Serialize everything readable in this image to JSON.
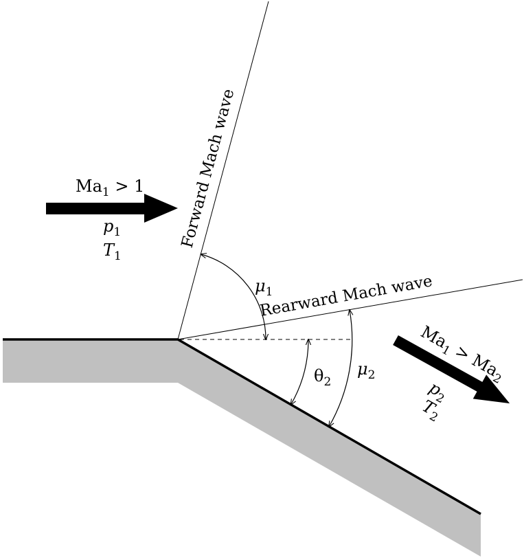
{
  "labels": {
    "forward_wave": "Forward Mach wave",
    "rearward_wave": "Rearward Mach wave",
    "upstream": {
      "mach_main": "Ma",
      "mach_sub": "1",
      "mach_rest": " > 1",
      "p_main": "p",
      "p_sub": "1",
      "t_main": "T",
      "t_sub": "1"
    },
    "downstream": {
      "mach_main": "Ma",
      "mach_sub": "1",
      "mach_mid": " > Ma",
      "mach_sub2": "2",
      "p_main": "p",
      "p_sub": "2",
      "t_main": "T",
      "t_sub": "2"
    },
    "angles": {
      "mu1_main": "μ",
      "mu1_sub": "1",
      "theta2_main": "θ",
      "theta2_sub": "2",
      "mu2_main": "μ",
      "mu2_sub": "2"
    }
  },
  "colors": {
    "wall_fill": "#c0c0c0",
    "ink": "#000000",
    "background": "#ffffff"
  }
}
